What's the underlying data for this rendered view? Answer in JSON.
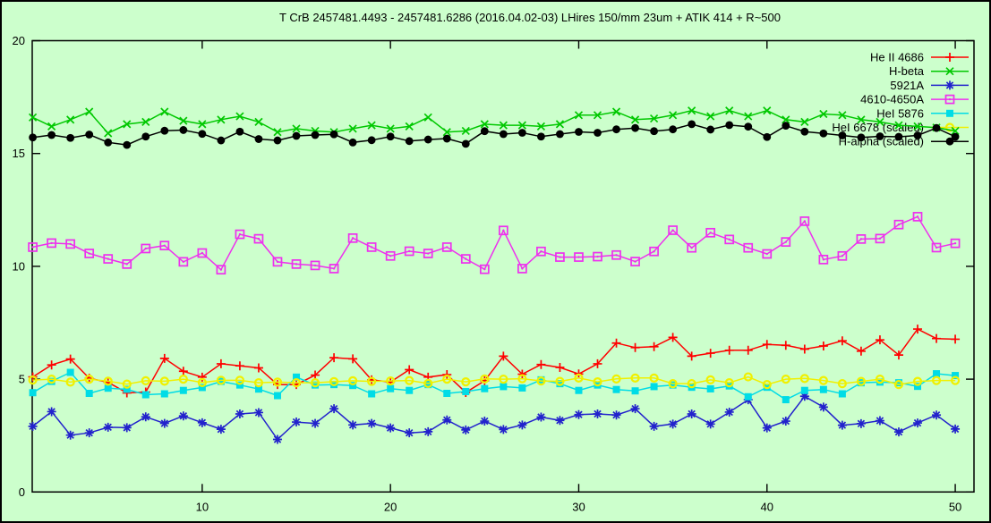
{
  "title": "T CrB 2457481.4493 - 2457481.6286 (2016.04.02-03) LHires 150/mm 23um + ATIK 414 + R~500",
  "colors": {
    "background": "#ccffcc",
    "border": "#000000",
    "he_ii_4686": "#ff0000",
    "h_beta": "#00c800",
    "line_5921A": "#2222cc",
    "band_4610_4650": "#ee30ee",
    "hei_5876": "#00dce6",
    "hei_6678": "#f0f000",
    "h_alpha": "#000000"
  },
  "chart_data": {
    "type": "line",
    "title": "T CrB 2457481.4493 - 2457481.6286 (2016.04.02-03) LHires 150/mm 23um + ATIK 414 + R~500",
    "xlabel": "",
    "ylabel": "",
    "xlim": [
      1,
      51.3
    ],
    "ylim": [
      0,
      20
    ],
    "x_ticks": [
      10,
      20,
      30,
      40,
      50
    ],
    "y_ticks": [
      0,
      5,
      10,
      15,
      20
    ],
    "grid": false,
    "legend_position": "inside top-right",
    "x_start": 1,
    "x_step": 1,
    "n_points": 50,
    "series": [
      {
        "name": "He II 4686",
        "color": "#ff0000",
        "marker": "plus",
        "values": [
          5.1,
          5.63,
          5.89,
          5.04,
          4.86,
          4.39,
          4.43,
          5.92,
          5.35,
          5.09,
          5.68,
          5.59,
          5.5,
          4.76,
          4.76,
          5.18,
          5.95,
          5.9,
          4.97,
          4.87,
          5.42,
          5.09,
          5.2,
          4.41,
          4.93,
          6.02,
          5.22,
          5.65,
          5.52,
          5.23,
          5.68,
          6.6,
          6.4,
          6.44,
          6.85,
          6.02,
          6.15,
          6.28,
          6.28,
          6.54,
          6.5,
          6.33,
          6.47,
          6.7,
          6.24,
          6.74,
          6.07,
          7.22,
          6.8,
          6.77
        ]
      },
      {
        "name": "H-beta",
        "color": "#00c800",
        "marker": "cross",
        "values": [
          16.6,
          16.2,
          16.5,
          16.85,
          15.9,
          16.3,
          16.4,
          16.85,
          16.45,
          16.3,
          16.5,
          16.65,
          16.4,
          15.95,
          16.1,
          16.0,
          15.95,
          16.1,
          16.25,
          16.1,
          16.2,
          16.6,
          15.95,
          16.0,
          16.3,
          16.25,
          16.25,
          16.2,
          16.3,
          16.7,
          16.7,
          16.85,
          16.5,
          16.55,
          16.7,
          16.9,
          16.65,
          16.9,
          16.65,
          16.9,
          16.5,
          16.4,
          16.75,
          16.7,
          16.5,
          16.4,
          16.25,
          16.2,
          16.15,
          16.0
        ]
      },
      {
        "name": "5921A",
        "color": "#2222cc",
        "marker": "asterisk",
        "values": [
          2.91,
          3.56,
          2.52,
          2.62,
          2.87,
          2.85,
          3.33,
          3.04,
          3.37,
          3.07,
          2.78,
          3.46,
          3.52,
          2.33,
          3.1,
          3.04,
          3.69,
          2.97,
          3.04,
          2.84,
          2.62,
          2.67,
          3.19,
          2.75,
          3.14,
          2.77,
          2.97,
          3.32,
          3.17,
          3.43,
          3.46,
          3.41,
          3.69,
          2.91,
          3.01,
          3.46,
          3.01,
          3.54,
          4.09,
          2.84,
          3.14,
          4.24,
          3.76,
          2.96,
          3.03,
          3.16,
          2.66,
          3.06,
          3.41,
          2.79
        ]
      },
      {
        "name": "4610-4650A",
        "color": "#ee30ee",
        "marker": "open-square",
        "values": [
          10.85,
          11.03,
          10.99,
          10.57,
          10.33,
          10.1,
          10.79,
          10.92,
          10.2,
          10.59,
          9.85,
          11.42,
          11.22,
          10.2,
          10.1,
          10.04,
          9.9,
          11.25,
          10.85,
          10.46,
          10.67,
          10.57,
          10.85,
          10.33,
          9.87,
          11.59,
          9.9,
          10.66,
          10.41,
          10.41,
          10.43,
          10.5,
          10.21,
          10.66,
          11.6,
          10.82,
          11.49,
          11.19,
          10.82,
          10.55,
          11.08,
          12.0,
          10.3,
          10.46,
          11.21,
          11.23,
          11.85,
          12.2,
          10.83,
          11.02
        ]
      },
      {
        "name": "HeI 5876",
        "color": "#00dce6",
        "marker": "filled-square",
        "values": [
          4.4,
          4.9,
          5.3,
          4.37,
          4.6,
          4.55,
          4.31,
          4.35,
          4.5,
          4.63,
          4.9,
          4.74,
          4.56,
          4.27,
          5.09,
          4.74,
          4.76,
          4.72,
          4.35,
          4.58,
          4.5,
          4.76,
          4.37,
          4.45,
          4.58,
          4.67,
          4.61,
          4.97,
          4.8,
          4.5,
          4.74,
          4.54,
          4.48,
          4.67,
          4.74,
          4.64,
          4.57,
          4.7,
          4.22,
          4.64,
          4.09,
          4.5,
          4.54,
          4.35,
          4.84,
          4.87,
          4.84,
          4.68,
          5.24,
          5.16
        ]
      },
      {
        "name": "HeI 6678 (scaled)",
        "color": "#f0f000",
        "marker": "open-circle",
        "values": [
          4.96,
          5.0,
          4.87,
          5.0,
          4.91,
          4.78,
          4.93,
          4.91,
          5.0,
          4.85,
          4.95,
          4.95,
          4.84,
          4.87,
          4.84,
          4.84,
          4.89,
          4.93,
          4.9,
          4.92,
          4.94,
          4.81,
          5.0,
          4.88,
          5.01,
          5.0,
          5.02,
          4.92,
          4.9,
          5.05,
          4.88,
          5.01,
          5.05,
          5.05,
          4.8,
          4.8,
          4.97,
          4.84,
          5.1,
          4.76,
          5.0,
          5.03,
          4.94,
          4.8,
          4.9,
          5.0,
          4.76,
          4.9,
          4.94,
          4.94
        ]
      },
      {
        "name": "H-alpha (scaled)",
        "color": "#000000",
        "marker": "filled-circle",
        "values": [
          15.71,
          15.82,
          15.69,
          15.84,
          15.49,
          15.38,
          15.75,
          16.01,
          16.04,
          15.87,
          15.58,
          15.97,
          15.64,
          15.58,
          15.78,
          15.82,
          15.85,
          15.49,
          15.59,
          15.75,
          15.55,
          15.62,
          15.66,
          15.43,
          15.99,
          15.86,
          15.92,
          15.75,
          15.86,
          15.96,
          15.92,
          16.07,
          16.13,
          15.99,
          16.07,
          16.3,
          16.06,
          16.26,
          16.19,
          15.73,
          16.23,
          15.97,
          15.89,
          15.8,
          15.71,
          15.76,
          15.74,
          15.8,
          16.13,
          15.74
        ]
      }
    ]
  }
}
